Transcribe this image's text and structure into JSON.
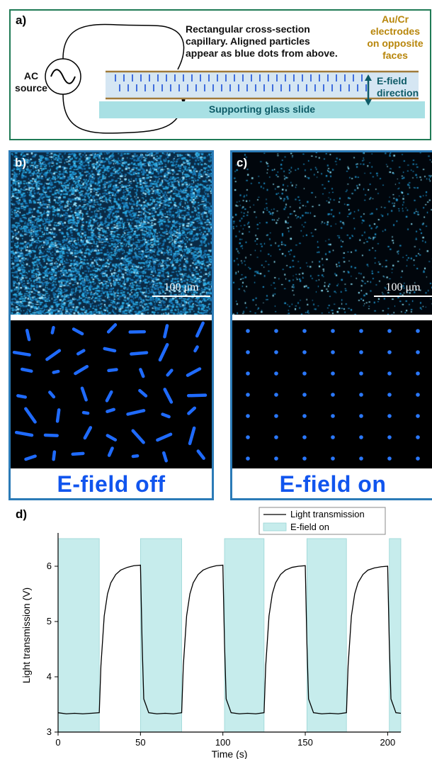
{
  "panel_a": {
    "letter": "a)",
    "description_lines": [
      "Rectangular cross-section",
      "capillary. Aligned particles",
      "appear as blue dots from above."
    ],
    "electrode_lines": [
      "Au/Cr",
      "electrodes",
      "on opposite",
      "faces"
    ],
    "field_lines": [
      "E-field",
      "direction"
    ],
    "ac_lines": [
      "AC",
      "source"
    ],
    "glass_label": "Supporting glass slide",
    "colors": {
      "border": "#1f7a55",
      "electrode_text": "#b8860b",
      "field_text": "#0d5a66",
      "glass": "#a8e0e4",
      "capillary": "#d5e6f3",
      "particle": "#1b4fd8"
    }
  },
  "panel_b": {
    "letter": "b)",
    "scale": "100 μm",
    "caption": "E-field off"
  },
  "panel_c": {
    "letter": "c)",
    "scale": "100 μm",
    "caption": "E-field on"
  },
  "panel_d": {
    "letter": "d)"
  },
  "chart_data": {
    "type": "line",
    "xlabel": "Time (s)",
    "ylabel": "Light transmission (V)",
    "xlim": [
      0,
      208
    ],
    "ylim": [
      3,
      6.5
    ],
    "xticks": [
      0,
      50,
      100,
      150,
      200
    ],
    "yticks": [
      3,
      4,
      5,
      6
    ],
    "legend": [
      "Light transmission",
      "E-field on"
    ],
    "legend_position": "top-right",
    "efield_on_intervals": [
      [
        0,
        25
      ],
      [
        50,
        75
      ],
      [
        101,
        125
      ],
      [
        151,
        175
      ],
      [
        201,
        208
      ]
    ],
    "series": [
      {
        "name": "Light transmission",
        "color": "#000000",
        "x": [
          0,
          5,
          10,
          15,
          20,
          25,
          26,
          28,
          30,
          32,
          35,
          38,
          42,
          46,
          50,
          51,
          52,
          55,
          60,
          65,
          70,
          75,
          76,
          78,
          80,
          82,
          85,
          88,
          92,
          96,
          100,
          101,
          102,
          105,
          110,
          115,
          120,
          125,
          126,
          128,
          130,
          132,
          135,
          138,
          142,
          146,
          150,
          151,
          152,
          155,
          160,
          165,
          170,
          175,
          176,
          178,
          180,
          182,
          185,
          188,
          192,
          196,
          200,
          201,
          202,
          205,
          208
        ],
        "y": [
          3.35,
          3.33,
          3.34,
          3.33,
          3.34,
          3.35,
          4.2,
          5.1,
          5.5,
          5.7,
          5.85,
          5.93,
          5.98,
          6.01,
          6.02,
          4.6,
          3.6,
          3.35,
          3.33,
          3.34,
          3.33,
          3.35,
          4.2,
          5.1,
          5.5,
          5.7,
          5.85,
          5.93,
          5.98,
          6.01,
          6.02,
          4.6,
          3.6,
          3.35,
          3.33,
          3.34,
          3.33,
          3.35,
          4.2,
          5.1,
          5.5,
          5.7,
          5.85,
          5.93,
          5.98,
          6.0,
          6.01,
          4.6,
          3.6,
          3.35,
          3.33,
          3.34,
          3.33,
          3.35,
          4.2,
          5.1,
          5.5,
          5.7,
          5.85,
          5.93,
          5.97,
          5.99,
          6.0,
          4.6,
          3.6,
          3.35,
          3.34
        ]
      }
    ],
    "shade_color": "#c6ecec"
  }
}
